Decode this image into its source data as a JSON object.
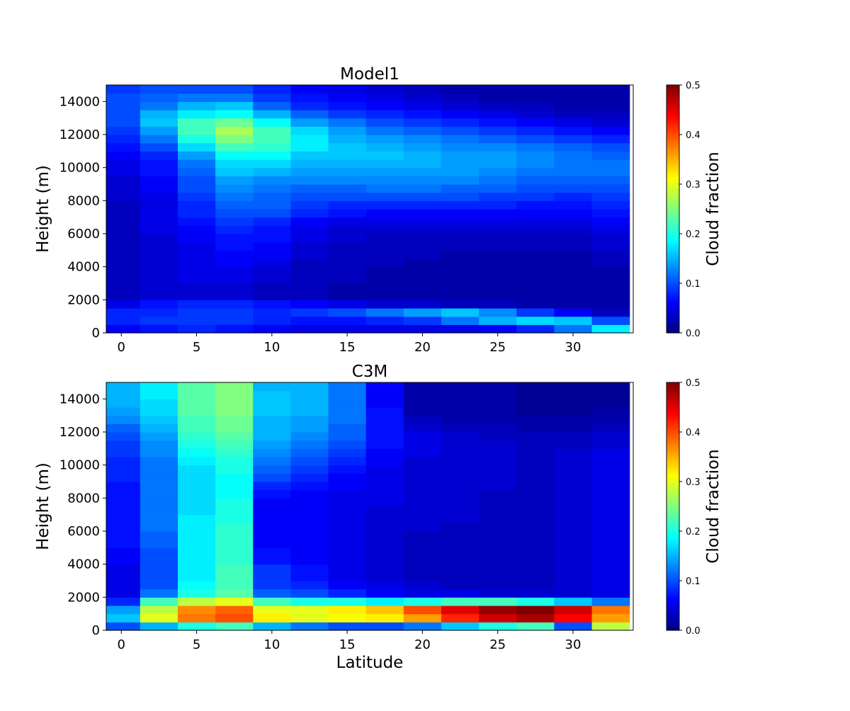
{
  "chart_data": [
    {
      "type": "heatmap",
      "title": "Model1",
      "xlabel": "",
      "ylabel": "Height (m)",
      "xlim": [
        -1,
        34
      ],
      "ylim": [
        0,
        15000
      ],
      "xticks": [
        0,
        5,
        10,
        15,
        20,
        25,
        30
      ],
      "yticks": [
        0,
        2000,
        4000,
        6000,
        8000,
        10000,
        12000,
        14000
      ],
      "x_centers": [
        0,
        2.5,
        5,
        7.5,
        10,
        12.5,
        15,
        17.5,
        20,
        22.5,
        25,
        27.5,
        30,
        32.5
      ],
      "y_centers": [
        250,
        750,
        1250,
        1750,
        2250,
        2750,
        3250,
        3750,
        4250,
        4750,
        5250,
        5750,
        6250,
        6750,
        7250,
        7750,
        8250,
        8750,
        9250,
        9750,
        10250,
        10750,
        11250,
        11750,
        12250,
        12750,
        13250,
        13750,
        14250,
        14750
      ],
      "values": [
        [
          0.06,
          0.07,
          0.08,
          0.07,
          0.06,
          0.05,
          0.05,
          0.05,
          0.05,
          0.05,
          0.06,
          0.08,
          0.12,
          0.18
        ],
        [
          0.08,
          0.09,
          0.09,
          0.09,
          0.08,
          0.07,
          0.07,
          0.08,
          0.09,
          0.12,
          0.15,
          0.17,
          0.16,
          0.1
        ],
        [
          0.08,
          0.08,
          0.09,
          0.09,
          0.08,
          0.09,
          0.1,
          0.12,
          0.14,
          0.16,
          0.13,
          0.09,
          0.06,
          0.03
        ],
        [
          0.05,
          0.07,
          0.08,
          0.08,
          0.07,
          0.06,
          0.05,
          0.04,
          0.04,
          0.03,
          0.03,
          0.02,
          0.02,
          0.02
        ],
        [
          0.03,
          0.04,
          0.04,
          0.04,
          0.03,
          0.03,
          0.02,
          0.02,
          0.02,
          0.02,
          0.02,
          0.02,
          0.02,
          0.02
        ],
        [
          0.03,
          0.04,
          0.04,
          0.04,
          0.03,
          0.03,
          0.02,
          0.02,
          0.02,
          0.02,
          0.02,
          0.02,
          0.02,
          0.02
        ],
        [
          0.03,
          0.04,
          0.05,
          0.05,
          0.04,
          0.03,
          0.03,
          0.02,
          0.02,
          0.02,
          0.02,
          0.02,
          0.02,
          0.02
        ],
        [
          0.03,
          0.04,
          0.05,
          0.05,
          0.04,
          0.03,
          0.03,
          0.02,
          0.02,
          0.02,
          0.02,
          0.02,
          0.02,
          0.02
        ],
        [
          0.03,
          0.04,
          0.05,
          0.06,
          0.05,
          0.03,
          0.03,
          0.03,
          0.02,
          0.02,
          0.02,
          0.02,
          0.02,
          0.03
        ],
        [
          0.03,
          0.04,
          0.05,
          0.06,
          0.06,
          0.04,
          0.03,
          0.03,
          0.03,
          0.02,
          0.02,
          0.02,
          0.02,
          0.03
        ],
        [
          0.03,
          0.04,
          0.05,
          0.07,
          0.06,
          0.04,
          0.03,
          0.03,
          0.03,
          0.03,
          0.03,
          0.03,
          0.03,
          0.04
        ],
        [
          0.03,
          0.04,
          0.06,
          0.07,
          0.07,
          0.05,
          0.04,
          0.03,
          0.03,
          0.03,
          0.03,
          0.03,
          0.03,
          0.04
        ],
        [
          0.03,
          0.05,
          0.06,
          0.08,
          0.07,
          0.05,
          0.04,
          0.04,
          0.04,
          0.04,
          0.04,
          0.04,
          0.04,
          0.05
        ],
        [
          0.03,
          0.05,
          0.07,
          0.09,
          0.08,
          0.06,
          0.05,
          0.05,
          0.05,
          0.05,
          0.05,
          0.05,
          0.05,
          0.06
        ],
        [
          0.03,
          0.05,
          0.08,
          0.1,
          0.1,
          0.08,
          0.07,
          0.06,
          0.06,
          0.06,
          0.06,
          0.06,
          0.06,
          0.07
        ],
        [
          0.03,
          0.05,
          0.08,
          0.11,
          0.11,
          0.09,
          0.08,
          0.08,
          0.08,
          0.08,
          0.08,
          0.07,
          0.07,
          0.08
        ],
        [
          0.04,
          0.05,
          0.09,
          0.12,
          0.11,
          0.1,
          0.1,
          0.1,
          0.1,
          0.1,
          0.09,
          0.09,
          0.08,
          0.09
        ],
        [
          0.04,
          0.06,
          0.1,
          0.13,
          0.12,
          0.11,
          0.11,
          0.12,
          0.12,
          0.11,
          0.11,
          0.1,
          0.1,
          0.1
        ],
        [
          0.04,
          0.06,
          0.1,
          0.14,
          0.13,
          0.13,
          0.13,
          0.13,
          0.13,
          0.13,
          0.12,
          0.11,
          0.11,
          0.11
        ],
        [
          0.05,
          0.07,
          0.11,
          0.16,
          0.15,
          0.14,
          0.14,
          0.14,
          0.14,
          0.14,
          0.13,
          0.12,
          0.12,
          0.12
        ],
        [
          0.05,
          0.07,
          0.12,
          0.17,
          0.17,
          0.15,
          0.15,
          0.15,
          0.15,
          0.14,
          0.14,
          0.13,
          0.12,
          0.12
        ],
        [
          0.06,
          0.08,
          0.14,
          0.19,
          0.19,
          0.16,
          0.16,
          0.16,
          0.15,
          0.14,
          0.14,
          0.13,
          0.12,
          0.11
        ],
        [
          0.07,
          0.1,
          0.17,
          0.22,
          0.21,
          0.18,
          0.16,
          0.15,
          0.14,
          0.13,
          0.13,
          0.12,
          0.11,
          0.1
        ],
        [
          0.08,
          0.12,
          0.2,
          0.25,
          0.22,
          0.18,
          0.15,
          0.14,
          0.13,
          0.12,
          0.11,
          0.1,
          0.09,
          0.08
        ],
        [
          0.09,
          0.14,
          0.22,
          0.27,
          0.22,
          0.17,
          0.14,
          0.12,
          0.11,
          0.1,
          0.09,
          0.08,
          0.07,
          0.06
        ],
        [
          0.1,
          0.16,
          0.22,
          0.24,
          0.19,
          0.14,
          0.12,
          0.1,
          0.09,
          0.08,
          0.07,
          0.06,
          0.05,
          0.04
        ],
        [
          0.1,
          0.15,
          0.18,
          0.19,
          0.15,
          0.11,
          0.09,
          0.08,
          0.07,
          0.06,
          0.05,
          0.04,
          0.03,
          0.03
        ],
        [
          0.1,
          0.12,
          0.15,
          0.16,
          0.11,
          0.08,
          0.07,
          0.06,
          0.05,
          0.04,
          0.03,
          0.03,
          0.02,
          0.02
        ],
        [
          0.1,
          0.11,
          0.12,
          0.12,
          0.09,
          0.07,
          0.06,
          0.05,
          0.04,
          0.03,
          0.02,
          0.02,
          0.02,
          0.02
        ],
        [
          0.09,
          0.1,
          0.1,
          0.1,
          0.08,
          0.06,
          0.05,
          0.04,
          0.03,
          0.02,
          0.02,
          0.02,
          0.02,
          0.02
        ]
      ],
      "colorbar": {
        "label": "Cloud fraction",
        "range": [
          0,
          0.5
        ],
        "ticks": [
          0.0,
          0.1,
          0.2,
          0.3,
          0.4,
          0.5
        ],
        "colormap": "jet"
      }
    },
    {
      "type": "heatmap",
      "title": "C3M",
      "xlabel": "Latitude",
      "ylabel": "Height (m)",
      "xlim": [
        -1,
        34
      ],
      "ylim": [
        0,
        15000
      ],
      "xticks": [
        0,
        5,
        10,
        15,
        20,
        25,
        30
      ],
      "yticks": [
        0,
        2000,
        4000,
        6000,
        8000,
        10000,
        12000,
        14000
      ],
      "x_centers": [
        0,
        2.5,
        5,
        7.5,
        10,
        12.5,
        15,
        17.5,
        20,
        22.5,
        25,
        27.5,
        30,
        32.5
      ],
      "y_centers": [
        250,
        750,
        1250,
        1750,
        2250,
        2750,
        3250,
        3750,
        4250,
        4750,
        5250,
        5750,
        6250,
        6750,
        7250,
        7750,
        8250,
        8750,
        9250,
        9750,
        10250,
        10750,
        11250,
        11750,
        12250,
        12750,
        13250,
        13750,
        14250,
        14750
      ],
      "values": [
        [
          0.1,
          0.15,
          0.2,
          0.22,
          0.15,
          0.12,
          0.1,
          0.1,
          0.12,
          0.16,
          0.2,
          0.22,
          0.1,
          0.28
        ],
        [
          0.16,
          0.3,
          0.38,
          0.4,
          0.32,
          0.3,
          0.31,
          0.32,
          0.36,
          0.42,
          0.46,
          0.48,
          0.44,
          0.36
        ],
        [
          0.14,
          0.28,
          0.37,
          0.39,
          0.3,
          0.3,
          0.32,
          0.34,
          0.4,
          0.45,
          0.49,
          0.5,
          0.46,
          0.38
        ],
        [
          0.08,
          0.22,
          0.28,
          0.3,
          0.22,
          0.2,
          0.2,
          0.18,
          0.2,
          0.22,
          0.22,
          0.2,
          0.16,
          0.12
        ],
        [
          0.05,
          0.12,
          0.2,
          0.23,
          0.11,
          0.1,
          0.08,
          0.06,
          0.05,
          0.05,
          0.04,
          0.04,
          0.04,
          0.05
        ],
        [
          0.05,
          0.1,
          0.19,
          0.22,
          0.09,
          0.08,
          0.06,
          0.05,
          0.04,
          0.03,
          0.03,
          0.03,
          0.04,
          0.05
        ],
        [
          0.05,
          0.1,
          0.18,
          0.22,
          0.09,
          0.07,
          0.05,
          0.04,
          0.03,
          0.03,
          0.03,
          0.03,
          0.04,
          0.05
        ],
        [
          0.05,
          0.1,
          0.18,
          0.22,
          0.09,
          0.07,
          0.05,
          0.04,
          0.03,
          0.03,
          0.03,
          0.03,
          0.04,
          0.05
        ],
        [
          0.06,
          0.1,
          0.18,
          0.21,
          0.07,
          0.06,
          0.05,
          0.04,
          0.03,
          0.03,
          0.03,
          0.03,
          0.04,
          0.05
        ],
        [
          0.06,
          0.1,
          0.18,
          0.21,
          0.07,
          0.06,
          0.05,
          0.04,
          0.03,
          0.03,
          0.03,
          0.03,
          0.04,
          0.05
        ],
        [
          0.07,
          0.11,
          0.18,
          0.21,
          0.06,
          0.06,
          0.05,
          0.04,
          0.03,
          0.03,
          0.03,
          0.03,
          0.04,
          0.05
        ],
        [
          0.07,
          0.11,
          0.18,
          0.21,
          0.06,
          0.06,
          0.05,
          0.04,
          0.03,
          0.03,
          0.03,
          0.03,
          0.04,
          0.05
        ],
        [
          0.07,
          0.12,
          0.18,
          0.21,
          0.06,
          0.06,
          0.05,
          0.04,
          0.04,
          0.03,
          0.03,
          0.03,
          0.04,
          0.05
        ],
        [
          0.07,
          0.12,
          0.18,
          0.2,
          0.06,
          0.06,
          0.05,
          0.04,
          0.04,
          0.04,
          0.03,
          0.03,
          0.04,
          0.05
        ],
        [
          0.07,
          0.12,
          0.17,
          0.2,
          0.06,
          0.06,
          0.05,
          0.04,
          0.04,
          0.04,
          0.03,
          0.03,
          0.04,
          0.05
        ],
        [
          0.07,
          0.12,
          0.17,
          0.2,
          0.06,
          0.06,
          0.05,
          0.05,
          0.04,
          0.04,
          0.03,
          0.03,
          0.04,
          0.05
        ],
        [
          0.07,
          0.12,
          0.17,
          0.19,
          0.07,
          0.06,
          0.05,
          0.05,
          0.04,
          0.04,
          0.03,
          0.03,
          0.04,
          0.05
        ],
        [
          0.07,
          0.12,
          0.17,
          0.19,
          0.08,
          0.07,
          0.06,
          0.05,
          0.04,
          0.04,
          0.04,
          0.03,
          0.04,
          0.05
        ],
        [
          0.08,
          0.12,
          0.17,
          0.19,
          0.1,
          0.08,
          0.06,
          0.05,
          0.04,
          0.04,
          0.04,
          0.03,
          0.04,
          0.05
        ],
        [
          0.08,
          0.12,
          0.17,
          0.2,
          0.11,
          0.09,
          0.07,
          0.05,
          0.04,
          0.04,
          0.04,
          0.03,
          0.04,
          0.05
        ],
        [
          0.08,
          0.12,
          0.18,
          0.2,
          0.12,
          0.1,
          0.08,
          0.06,
          0.04,
          0.04,
          0.04,
          0.03,
          0.04,
          0.05
        ],
        [
          0.09,
          0.13,
          0.19,
          0.21,
          0.13,
          0.11,
          0.09,
          0.06,
          0.05,
          0.04,
          0.04,
          0.03,
          0.04,
          0.05
        ],
        [
          0.09,
          0.13,
          0.2,
          0.22,
          0.14,
          0.12,
          0.1,
          0.07,
          0.05,
          0.04,
          0.04,
          0.03,
          0.03,
          0.04
        ],
        [
          0.1,
          0.14,
          0.21,
          0.23,
          0.15,
          0.13,
          0.11,
          0.07,
          0.05,
          0.04,
          0.03,
          0.03,
          0.03,
          0.04
        ],
        [
          0.11,
          0.15,
          0.22,
          0.24,
          0.15,
          0.14,
          0.11,
          0.07,
          0.04,
          0.03,
          0.03,
          0.02,
          0.02,
          0.03
        ],
        [
          0.13,
          0.16,
          0.22,
          0.24,
          0.15,
          0.14,
          0.12,
          0.07,
          0.03,
          0.02,
          0.02,
          0.02,
          0.02,
          0.02
        ],
        [
          0.14,
          0.17,
          0.23,
          0.25,
          0.16,
          0.15,
          0.12,
          0.07,
          0.02,
          0.02,
          0.02,
          0.01,
          0.01,
          0.02
        ],
        [
          0.15,
          0.17,
          0.23,
          0.25,
          0.16,
          0.15,
          0.12,
          0.06,
          0.02,
          0.02,
          0.02,
          0.01,
          0.01,
          0.01
        ],
        [
          0.15,
          0.18,
          0.23,
          0.25,
          0.16,
          0.15,
          0.12,
          0.06,
          0.02,
          0.02,
          0.02,
          0.01,
          0.01,
          0.01
        ],
        [
          0.15,
          0.18,
          0.23,
          0.25,
          0.15,
          0.15,
          0.12,
          0.06,
          0.02,
          0.02,
          0.02,
          0.01,
          0.01,
          0.01
        ]
      ],
      "colorbar": {
        "label": "Cloud fraction",
        "range": [
          0,
          0.5
        ],
        "ticks": [
          0.0,
          0.1,
          0.2,
          0.3,
          0.4,
          0.5
        ],
        "colormap": "jet"
      }
    }
  ]
}
